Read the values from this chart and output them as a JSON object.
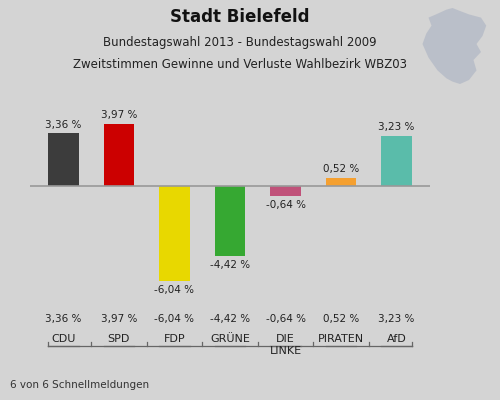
{
  "title_line1": "Stadt Bielefeld",
  "title_line2": "Bundestagswahl 2013 - Bundestagswahl 2009",
  "title_line3": "Zweitstimmen Gewinne und Verluste Wahlbezirk WBZ03",
  "categories": [
    "CDU",
    "SPD",
    "FDP",
    "GRÜNE",
    "DIE\nLINKE",
    "PIRATEN",
    "AfD"
  ],
  "values": [
    3.36,
    3.97,
    -6.04,
    -4.42,
    -0.64,
    0.52,
    3.23
  ],
  "value_labels": [
    "3,36 %",
    "3,97 %",
    "-6,04 %",
    "-4,42 %",
    "-0,64 %",
    "0,52 %",
    "3,23 %"
  ],
  "bar_colors": [
    "#3c3c3c",
    "#cc0000",
    "#e8d800",
    "#36a832",
    "#c0527a",
    "#f5a030",
    "#5abcaa"
  ],
  "background_color": "#d4d4d4",
  "footer_text": "6 von 6 Schnellmeldungen",
  "ylim": [
    -8.0,
    6.0
  ],
  "bar_width": 0.55
}
